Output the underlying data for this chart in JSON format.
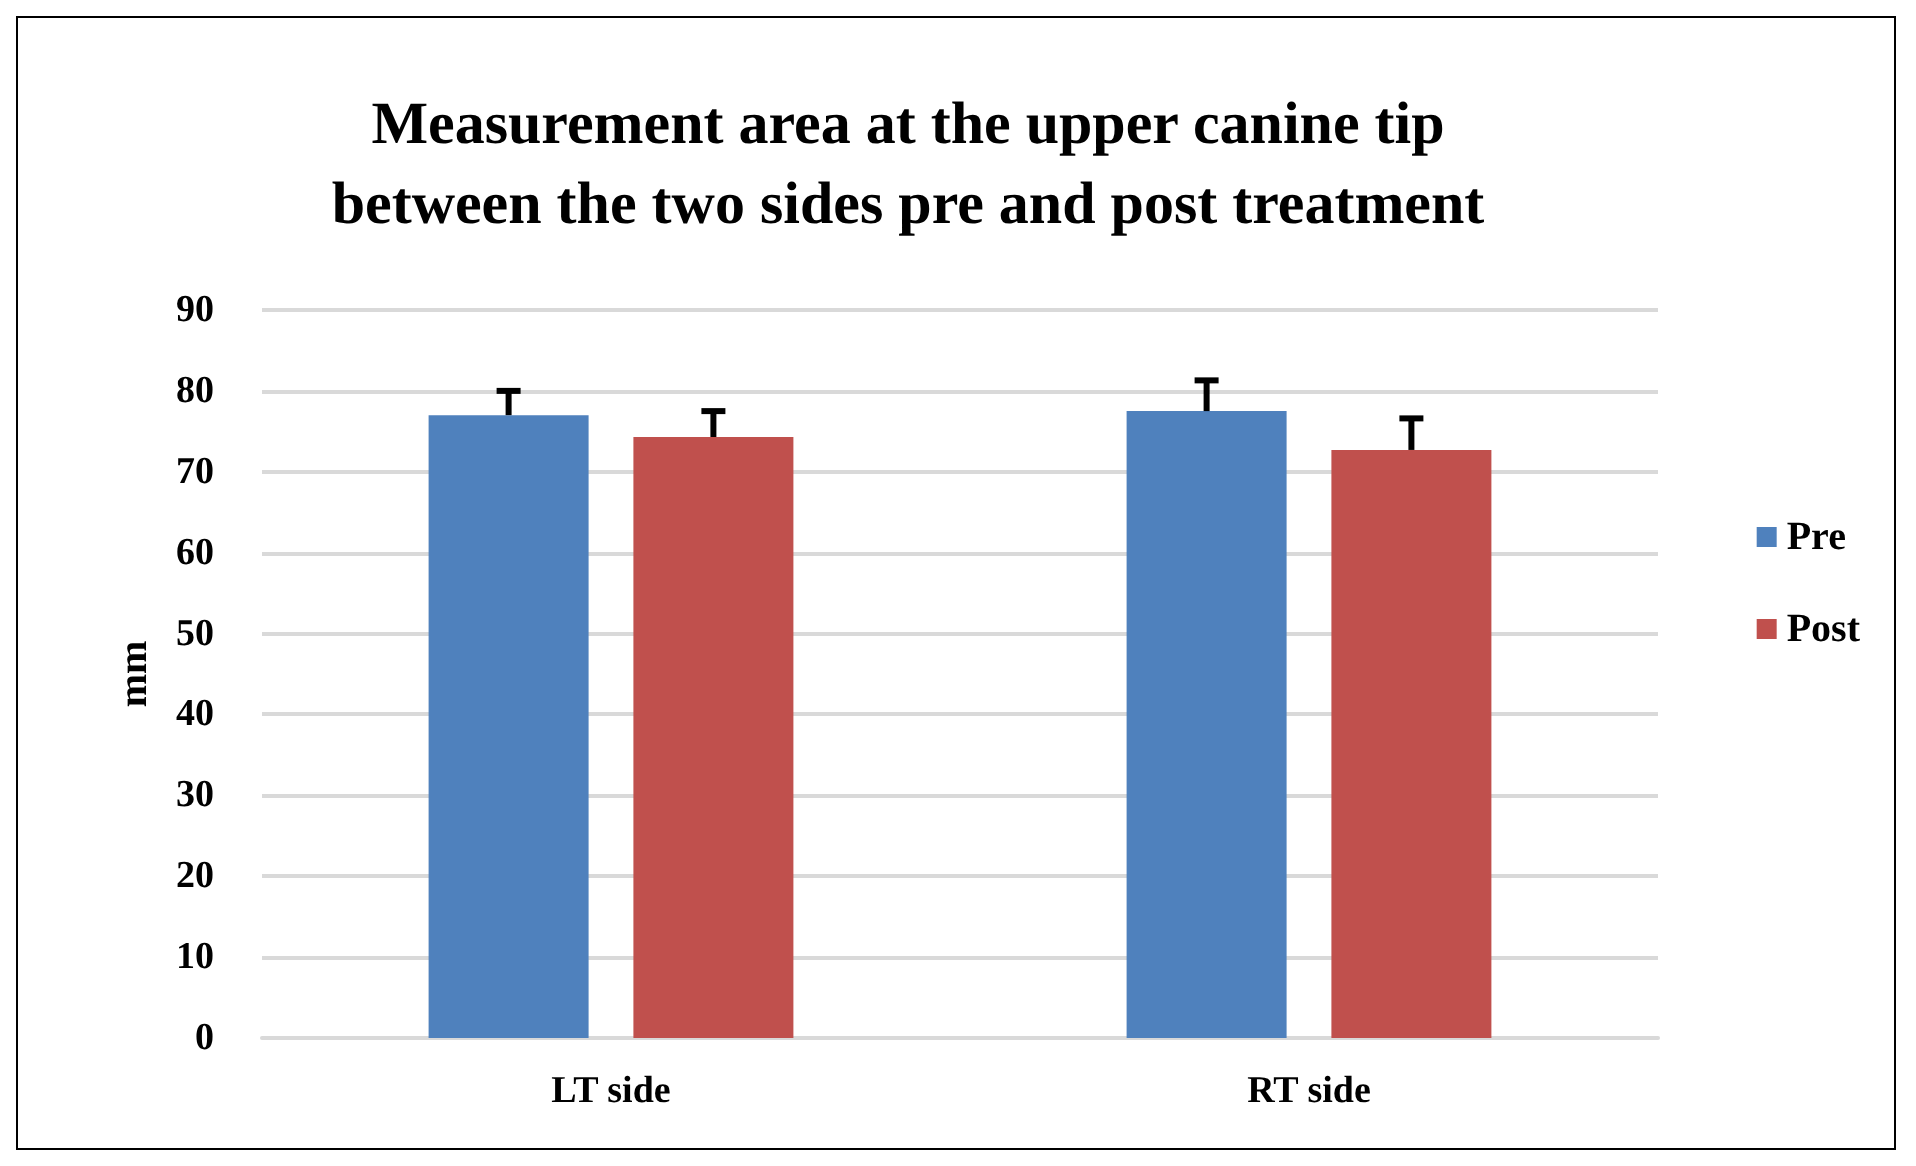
{
  "chart_data": {
    "type": "bar",
    "title": "Measurement area at the upper canine tip\nbetween the two sides pre and post treatment",
    "ylabel": "mm",
    "categories": [
      "LT side",
      "RT side"
    ],
    "series": [
      {
        "name": "Pre",
        "color": "#4f81bd",
        "values": [
          77,
          77.5
        ],
        "errors": [
          [
            77,
            80
          ],
          [
            77.5,
            81.3
          ]
        ]
      },
      {
        "name": "Post",
        "color": "#c0504d",
        "values": [
          74.3,
          72.7
        ],
        "errors": [
          [
            74.3,
            77.5
          ],
          [
            72.7,
            76.6
          ]
        ]
      }
    ],
    "ylim": [
      0,
      90
    ],
    "yticks": [
      0,
      10,
      20,
      30,
      40,
      50,
      60,
      70,
      80,
      90
    ],
    "grid": "y",
    "legend": "right"
  }
}
